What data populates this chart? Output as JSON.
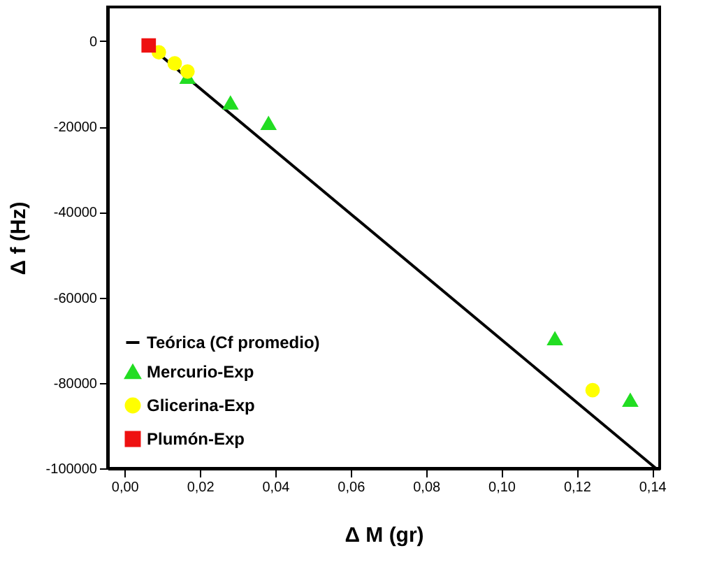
{
  "chart_data": {
    "type": "scatter",
    "xlabel": "Δ M (gr)",
    "ylabel": "Δ f (Hz)",
    "xlim": [
      -0.0045,
      0.142
    ],
    "ylim": [
      -100000,
      8000
    ],
    "xticks": [
      {
        "value": 0,
        "label": "0,00"
      },
      {
        "value": 0.02,
        "label": "0,02"
      },
      {
        "value": 0.04,
        "label": "0,04"
      },
      {
        "value": 0.06,
        "label": "0,06"
      },
      {
        "value": 0.08,
        "label": "0,08"
      },
      {
        "value": 0.1,
        "label": "0,10"
      },
      {
        "value": 0.12,
        "label": "0,12"
      },
      {
        "value": 0.14,
        "label": "0,14"
      }
    ],
    "yticks": [
      0,
      -20000,
      -40000,
      -60000,
      -80000,
      -100000
    ],
    "grid": false,
    "legend": "bottom left",
    "series": [
      {
        "name": "Teórica (Cf promedio)",
        "type": "line",
        "color": "#000000",
        "marker": "none",
        "line_style": "solid",
        "x": [
          0.005,
          0.141
        ],
        "values": [
          0,
          -100000
        ]
      },
      {
        "name": "Mercurio-Exp",
        "color": "#22dd22",
        "marker": "triangle",
        "x": [
          0.0167,
          0.0281,
          0.0382,
          0.1142,
          0.1342
        ],
        "values": [
          -8500,
          -14500,
          -19300,
          -69700,
          -84100
        ]
      },
      {
        "name": "Glicerina-Exp",
        "color": "#ffff00",
        "marker": "circle",
        "x": [
          0.0091,
          0.0133,
          0.0167,
          0.1242
        ],
        "values": [
          -2600,
          -5200,
          -7100,
          -81700
        ]
      },
      {
        "name": "Plumón-Exp",
        "color": "#ee1111",
        "marker": "square",
        "x": [
          0.0064
        ],
        "values": [
          -1000
        ]
      }
    ]
  }
}
